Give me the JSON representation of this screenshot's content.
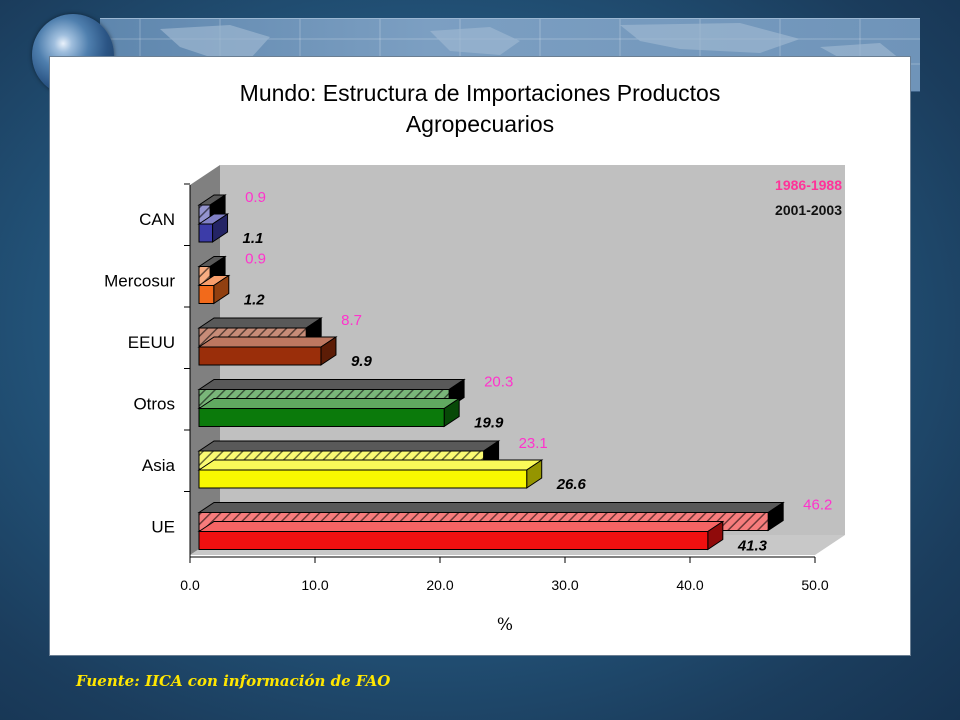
{
  "slide": {
    "source": "Fuente: IICA con información de FAO"
  },
  "chart_data": {
    "type": "bar",
    "orientation": "horizontal",
    "title": "Mundo: Estructura de Importaciones Productos Agropecuarios",
    "title_lines": [
      "Mundo: Estructura de Importaciones Productos",
      "Agropecuarios"
    ],
    "xlabel": "%",
    "xlim": [
      0,
      50
    ],
    "xticks": [
      "0.0",
      "10.0",
      "20.0",
      "30.0",
      "40.0",
      "50.0"
    ],
    "categories": [
      "CAN",
      "Mercosur",
      "EEUU",
      "Otros",
      "Asia",
      "UE"
    ],
    "series": [
      {
        "name": "1986-1988",
        "values": [
          0.9,
          0.9,
          8.7,
          20.3,
          23.1,
          46.2
        ],
        "labels": [
          "0.9",
          "0.9",
          "8.7",
          "20.3",
          "23.1",
          "46.2"
        ],
        "pattern": "hatched",
        "label_color": "#ff33cc"
      },
      {
        "name": "2001-2003",
        "values": [
          1.1,
          1.2,
          9.9,
          19.9,
          26.6,
          41.3
        ],
        "labels": [
          "1.1",
          "1.2",
          "9.9",
          "19.9",
          "26.6",
          "41.3"
        ],
        "pattern": "solid",
        "label_color": "#000000"
      }
    ],
    "category_colors": [
      "#3c3ca8",
      "#f26a1b",
      "#9a2e0a",
      "#0b7a0b",
      "#f8f800",
      "#f01010"
    ],
    "legend": "top-right",
    "grid": false
  }
}
